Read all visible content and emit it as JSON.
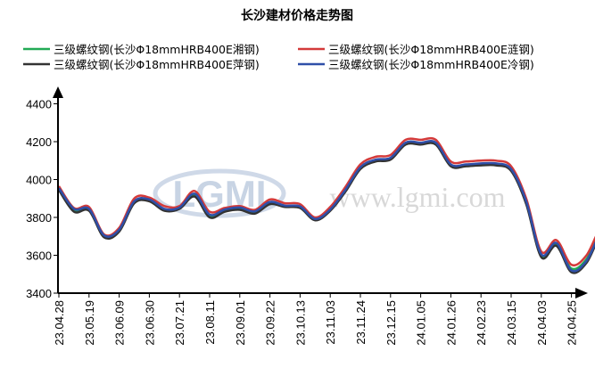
{
  "chart_data": {
    "type": "line",
    "title": "长沙建材价格走势图",
    "xlabel": "",
    "ylabel": "",
    "ylim": [
      3400,
      4400
    ],
    "yticks": [
      3400,
      3600,
      3800,
      4000,
      4200,
      4400
    ],
    "x_tick_labels": [
      "23.04.28",
      "23.05.19",
      "23.06.09",
      "23.06.30",
      "23.07.21",
      "23.08.11",
      "23.09.01",
      "23.09.22",
      "23.10.13",
      "23.11.03",
      "23.11.24",
      "23.12.15",
      "24.01.05",
      "24.01.26",
      "24.02.23",
      "24.03.15",
      "24.04.03",
      "24.04.25"
    ],
    "grid": false,
    "legend_position": "top",
    "series": [
      {
        "name": "三级螺纹钢(长沙Φ18mmHRB400E湘钢)",
        "color": "#22aa55",
        "points": [
          [
            0,
            3950
          ],
          [
            0.5,
            3840
          ],
          [
            1,
            3840
          ],
          [
            1.5,
            3700
          ],
          [
            2,
            3730
          ],
          [
            2.5,
            3880
          ],
          [
            3,
            3890
          ],
          [
            3.5,
            3840
          ],
          [
            4,
            3850
          ],
          [
            4.5,
            3920
          ],
          [
            5,
            3810
          ],
          [
            5.5,
            3840
          ],
          [
            6,
            3850
          ],
          [
            6.5,
            3830
          ],
          [
            7,
            3880
          ],
          [
            7.5,
            3860
          ],
          [
            8,
            3855
          ],
          [
            8.5,
            3790
          ],
          [
            9,
            3840
          ],
          [
            9.5,
            3940
          ],
          [
            10,
            4060
          ],
          [
            10.5,
            4100
          ],
          [
            11,
            4110
          ],
          [
            11.5,
            4190
          ],
          [
            12,
            4190
          ],
          [
            12.5,
            4190
          ],
          [
            13,
            4075
          ],
          [
            13.5,
            4075
          ],
          [
            14,
            4080
          ],
          [
            14.5,
            4080
          ],
          [
            15,
            4050
          ],
          [
            15.5,
            3880
          ],
          [
            16,
            3600
          ],
          [
            16.5,
            3660
          ],
          [
            17,
            3530
          ],
          [
            17.5,
            3580
          ],
          [
            18,
            3730
          ],
          [
            18.5,
            3720
          ]
        ]
      },
      {
        "name": "三级螺纹钢(长沙Φ18mmHRB400E涟钢)",
        "color": "#d43a3a",
        "points": [
          [
            0,
            3965
          ],
          [
            0.5,
            3850
          ],
          [
            1,
            3855
          ],
          [
            1.5,
            3710
          ],
          [
            2,
            3745
          ],
          [
            2.5,
            3900
          ],
          [
            3,
            3905
          ],
          [
            3.5,
            3860
          ],
          [
            4,
            3860
          ],
          [
            4.5,
            3940
          ],
          [
            5,
            3830
          ],
          [
            5.5,
            3850
          ],
          [
            6,
            3860
          ],
          [
            6.5,
            3840
          ],
          [
            7,
            3895
          ],
          [
            7.5,
            3875
          ],
          [
            8,
            3870
          ],
          [
            8.5,
            3800
          ],
          [
            9,
            3855
          ],
          [
            9.5,
            3960
          ],
          [
            10,
            4080
          ],
          [
            10.5,
            4120
          ],
          [
            11,
            4130
          ],
          [
            11.5,
            4210
          ],
          [
            12,
            4210
          ],
          [
            12.5,
            4210
          ],
          [
            13,
            4095
          ],
          [
            13.5,
            4095
          ],
          [
            14,
            4100
          ],
          [
            14.5,
            4100
          ],
          [
            15,
            4070
          ],
          [
            15.5,
            3900
          ],
          [
            16,
            3620
          ],
          [
            16.5,
            3680
          ],
          [
            17,
            3550
          ],
          [
            17.5,
            3600
          ],
          [
            18,
            3750
          ],
          [
            18.5,
            3750
          ]
        ]
      },
      {
        "name": "三级螺纹钢(长沙Φ18mmHRB400E萍钢)",
        "color": "#333333",
        "points": [
          [
            0,
            3945
          ],
          [
            0.5,
            3830
          ],
          [
            1,
            3835
          ],
          [
            1.5,
            3695
          ],
          [
            2,
            3725
          ],
          [
            2.5,
            3875
          ],
          [
            3,
            3885
          ],
          [
            3.5,
            3835
          ],
          [
            4,
            3845
          ],
          [
            4.5,
            3910
          ],
          [
            5,
            3800
          ],
          [
            5.5,
            3830
          ],
          [
            6,
            3840
          ],
          [
            6.5,
            3820
          ],
          [
            7,
            3870
          ],
          [
            7.5,
            3855
          ],
          [
            8,
            3850
          ],
          [
            8.5,
            3785
          ],
          [
            9,
            3835
          ],
          [
            9.5,
            3935
          ],
          [
            10,
            4055
          ],
          [
            10.5,
            4095
          ],
          [
            11,
            4105
          ],
          [
            11.5,
            4185
          ],
          [
            12,
            4185
          ],
          [
            12.5,
            4185
          ],
          [
            13,
            4070
          ],
          [
            13.5,
            4070
          ],
          [
            14,
            4075
          ],
          [
            14.5,
            4075
          ],
          [
            15,
            4045
          ],
          [
            15.5,
            3870
          ],
          [
            16,
            3590
          ],
          [
            16.5,
            3650
          ],
          [
            17,
            3510
          ],
          [
            17.5,
            3560
          ],
          [
            18,
            3710
          ],
          [
            18.5,
            3700
          ]
        ]
      },
      {
        "name": "三级螺纹钢(长沙Φ18mmHRB400E冷钢)",
        "color": "#2f4fa8",
        "points": [
          [
            0,
            3955
          ],
          [
            0.5,
            3845
          ],
          [
            1,
            3845
          ],
          [
            1.5,
            3705
          ],
          [
            2,
            3735
          ],
          [
            2.5,
            3885
          ],
          [
            3,
            3895
          ],
          [
            3.5,
            3845
          ],
          [
            4,
            3852
          ],
          [
            4.5,
            3925
          ],
          [
            5,
            3815
          ],
          [
            5.5,
            3842
          ],
          [
            6,
            3852
          ],
          [
            6.5,
            3832
          ],
          [
            7,
            3882
          ],
          [
            7.5,
            3862
          ],
          [
            8,
            3858
          ],
          [
            8.5,
            3792
          ],
          [
            9,
            3842
          ],
          [
            9.5,
            3945
          ],
          [
            10,
            4065
          ],
          [
            10.5,
            4105
          ],
          [
            11,
            4115
          ],
          [
            11.5,
            4195
          ],
          [
            12,
            4195
          ],
          [
            12.5,
            4195
          ],
          [
            13,
            4080
          ],
          [
            13.5,
            4080
          ],
          [
            14,
            4085
          ],
          [
            14.5,
            4085
          ],
          [
            15,
            4055
          ],
          [
            15.5,
            3885
          ],
          [
            16,
            3605
          ],
          [
            16.5,
            3665
          ],
          [
            17,
            3520
          ],
          [
            17.5,
            3570
          ],
          [
            18,
            3720
          ],
          [
            18.5,
            3710
          ]
        ]
      }
    ],
    "watermark": {
      "logo": "LGMI",
      "url": "www.lgmi.com"
    }
  }
}
